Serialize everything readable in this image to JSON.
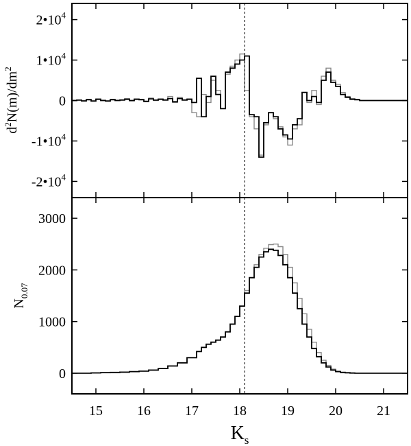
{
  "chart_data": [
    {
      "type": "line",
      "panel": "top",
      "title": "",
      "xlabel": "",
      "ylabel": {
        "prefix": "d",
        "sup1": "2",
        "mid": "N(m)/dm",
        "sup2": "2"
      },
      "xlim": [
        14.5,
        21.5
      ],
      "ylim": [
        -24000,
        24000
      ],
      "xticks": [
        15,
        16,
        17,
        18,
        19,
        20,
        21
      ],
      "yticks": [
        {
          "value": 20000,
          "mantissa": "2•10",
          "exp": "4"
        },
        {
          "value": 10000,
          "mantissa": "1•10",
          "exp": "4"
        },
        {
          "value": 0,
          "mantissa": "0",
          "exp": ""
        },
        {
          "value": -10000,
          "mantissa": "-1•10",
          "exp": "4"
        },
        {
          "value": -20000,
          "mantissa": "-2•10",
          "exp": "4"
        }
      ],
      "vline_x": 18.1,
      "grid": false,
      "series": [
        {
          "color": "#888888",
          "x": [
            14.5,
            14.6,
            14.7,
            14.8,
            14.9,
            15.0,
            15.1,
            15.2,
            15.3,
            15.4,
            15.5,
            15.6,
            15.7,
            15.8,
            15.9,
            16.0,
            16.1,
            16.2,
            16.3,
            16.4,
            16.5,
            16.6,
            16.7,
            16.8,
            16.9,
            17.0,
            17.1,
            17.2,
            17.3,
            17.4,
            17.5,
            17.6,
            17.7,
            17.8,
            17.9,
            18.0,
            18.1,
            18.2,
            18.3,
            18.4,
            18.5,
            18.6,
            18.7,
            18.8,
            18.9,
            19.0,
            19.1,
            19.2,
            19.3,
            19.4,
            19.5,
            19.6,
            19.7,
            19.8,
            19.9,
            20.0,
            20.1,
            20.2,
            20.3,
            20.4,
            20.5,
            20.6,
            20.7,
            20.8,
            20.9,
            21.0,
            21.1,
            21.2,
            21.3,
            21.4,
            21.5
          ],
          "y": [
            0,
            100,
            0,
            300,
            -200,
            400,
            100,
            -200,
            300,
            100,
            200,
            500,
            -100,
            400,
            300,
            -300,
            600,
            0,
            400,
            200,
            1000,
            -500,
            800,
            200,
            400,
            -3000,
            -4000,
            1500,
            -500,
            5000,
            2500,
            -2000,
            6500,
            8500,
            10000,
            11500,
            2500,
            -4000,
            -7000,
            -13500,
            -6000,
            -3000,
            -4500,
            -6500,
            -9000,
            -11000,
            -7000,
            -6000,
            2000,
            -500,
            2500,
            -1000,
            6000,
            8000,
            5000,
            4000,
            2000,
            1000,
            500,
            300,
            0,
            0,
            0,
            0,
            0,
            0,
            0,
            0,
            0,
            0,
            0
          ]
        },
        {
          "color": "#000000",
          "x": [
            14.5,
            14.6,
            14.7,
            14.8,
            14.9,
            15.0,
            15.1,
            15.2,
            15.3,
            15.4,
            15.5,
            15.6,
            15.7,
            15.8,
            15.9,
            16.0,
            16.1,
            16.2,
            16.3,
            16.4,
            16.5,
            16.6,
            16.7,
            16.8,
            16.9,
            17.0,
            17.1,
            17.2,
            17.3,
            17.4,
            17.5,
            17.6,
            17.7,
            17.8,
            17.9,
            18.0,
            18.1,
            18.2,
            18.3,
            18.4,
            18.5,
            18.6,
            18.7,
            18.8,
            18.9,
            19.0,
            19.1,
            19.2,
            19.3,
            19.4,
            19.5,
            19.6,
            19.7,
            19.8,
            19.9,
            20.0,
            20.1,
            20.2,
            20.3,
            20.4,
            20.5,
            20.6,
            20.7,
            20.8,
            20.9,
            21.0,
            21.1,
            21.2,
            21.3,
            21.4,
            21.5
          ],
          "y": [
            0,
            100,
            -100,
            200,
            -100,
            300,
            0,
            -100,
            200,
            0,
            100,
            300,
            0,
            300,
            200,
            -200,
            400,
            100,
            300,
            100,
            500,
            -300,
            500,
            100,
            300,
            -500,
            5500,
            -4000,
            1000,
            6000,
            1500,
            -2000,
            7000,
            8000,
            9000,
            10000,
            11000,
            -3500,
            -4000,
            -14000,
            -5500,
            -3000,
            -4000,
            -7000,
            -8500,
            -9500,
            -6000,
            -4500,
            2000,
            0,
            1000,
            -500,
            5000,
            7000,
            4500,
            3500,
            1500,
            800,
            300,
            200,
            0,
            0,
            0,
            0,
            0,
            0,
            0,
            0,
            0,
            0,
            0
          ]
        }
      ]
    },
    {
      "type": "line",
      "panel": "bottom",
      "title": "",
      "xlabel": {
        "main": "K",
        "sub": "s"
      },
      "ylabel": {
        "main": "N",
        "sub": "0.07"
      },
      "xlim": [
        14.5,
        21.5
      ],
      "ylim": [
        -400,
        3400
      ],
      "xticks": [
        15,
        16,
        17,
        18,
        19,
        20,
        21
      ],
      "yticks": [
        {
          "value": 0,
          "mantissa": "0",
          "exp": ""
        },
        {
          "value": 1000,
          "mantissa": "1000",
          "exp": ""
        },
        {
          "value": 2000,
          "mantissa": "2000",
          "exp": ""
        },
        {
          "value": 3000,
          "mantissa": "3000",
          "exp": ""
        }
      ],
      "vline_x": 18.1,
      "grid": false,
      "series": [
        {
          "color": "#888888",
          "x": [
            14.5,
            14.7,
            14.9,
            15.1,
            15.3,
            15.5,
            15.7,
            15.9,
            16.1,
            16.3,
            16.5,
            16.7,
            16.9,
            17.1,
            17.2,
            17.3,
            17.4,
            17.5,
            17.6,
            17.7,
            17.8,
            17.9,
            18.0,
            18.1,
            18.2,
            18.3,
            18.4,
            18.5,
            18.6,
            18.7,
            18.8,
            18.9,
            19.0,
            19.1,
            19.2,
            19.3,
            19.4,
            19.5,
            19.6,
            19.7,
            19.8,
            19.9,
            20.0,
            20.1,
            20.2,
            20.3,
            20.4,
            20.5,
            20.6,
            20.7,
            20.9,
            21.1,
            21.3,
            21.5
          ],
          "y": [
            0,
            0,
            5,
            10,
            15,
            20,
            30,
            40,
            60,
            90,
            140,
            200,
            300,
            420,
            500,
            560,
            600,
            640,
            700,
            800,
            950,
            1100,
            1300,
            1600,
            1850,
            2100,
            2300,
            2420,
            2490,
            2500,
            2450,
            2300,
            2050,
            1750,
            1450,
            1150,
            850,
            600,
            400,
            250,
            150,
            80,
            40,
            20,
            10,
            5,
            0,
            0,
            0,
            0,
            0,
            0,
            0,
            0
          ]
        },
        {
          "color": "#000000",
          "x": [
            14.5,
            14.7,
            14.9,
            15.1,
            15.3,
            15.5,
            15.7,
            15.9,
            16.1,
            16.3,
            16.5,
            16.7,
            16.9,
            17.1,
            17.2,
            17.3,
            17.4,
            17.5,
            17.6,
            17.7,
            17.8,
            17.9,
            18.0,
            18.1,
            18.2,
            18.3,
            18.4,
            18.5,
            18.6,
            18.7,
            18.8,
            18.9,
            19.0,
            19.1,
            19.2,
            19.3,
            19.4,
            19.5,
            19.6,
            19.7,
            19.8,
            19.9,
            20.0,
            20.1,
            20.2,
            20.3,
            20.4,
            20.5,
            20.6,
            20.7,
            20.9,
            21.1,
            21.3,
            21.5
          ],
          "y": [
            0,
            0,
            5,
            10,
            15,
            20,
            30,
            40,
            60,
            90,
            140,
            200,
            300,
            420,
            500,
            560,
            600,
            640,
            700,
            800,
            950,
            1100,
            1300,
            1550,
            1850,
            2050,
            2250,
            2350,
            2400,
            2380,
            2280,
            2100,
            1850,
            1550,
            1250,
            950,
            700,
            480,
            320,
            200,
            120,
            60,
            30,
            15,
            8,
            3,
            0,
            0,
            0,
            0,
            0,
            0,
            0,
            0
          ]
        }
      ]
    }
  ]
}
